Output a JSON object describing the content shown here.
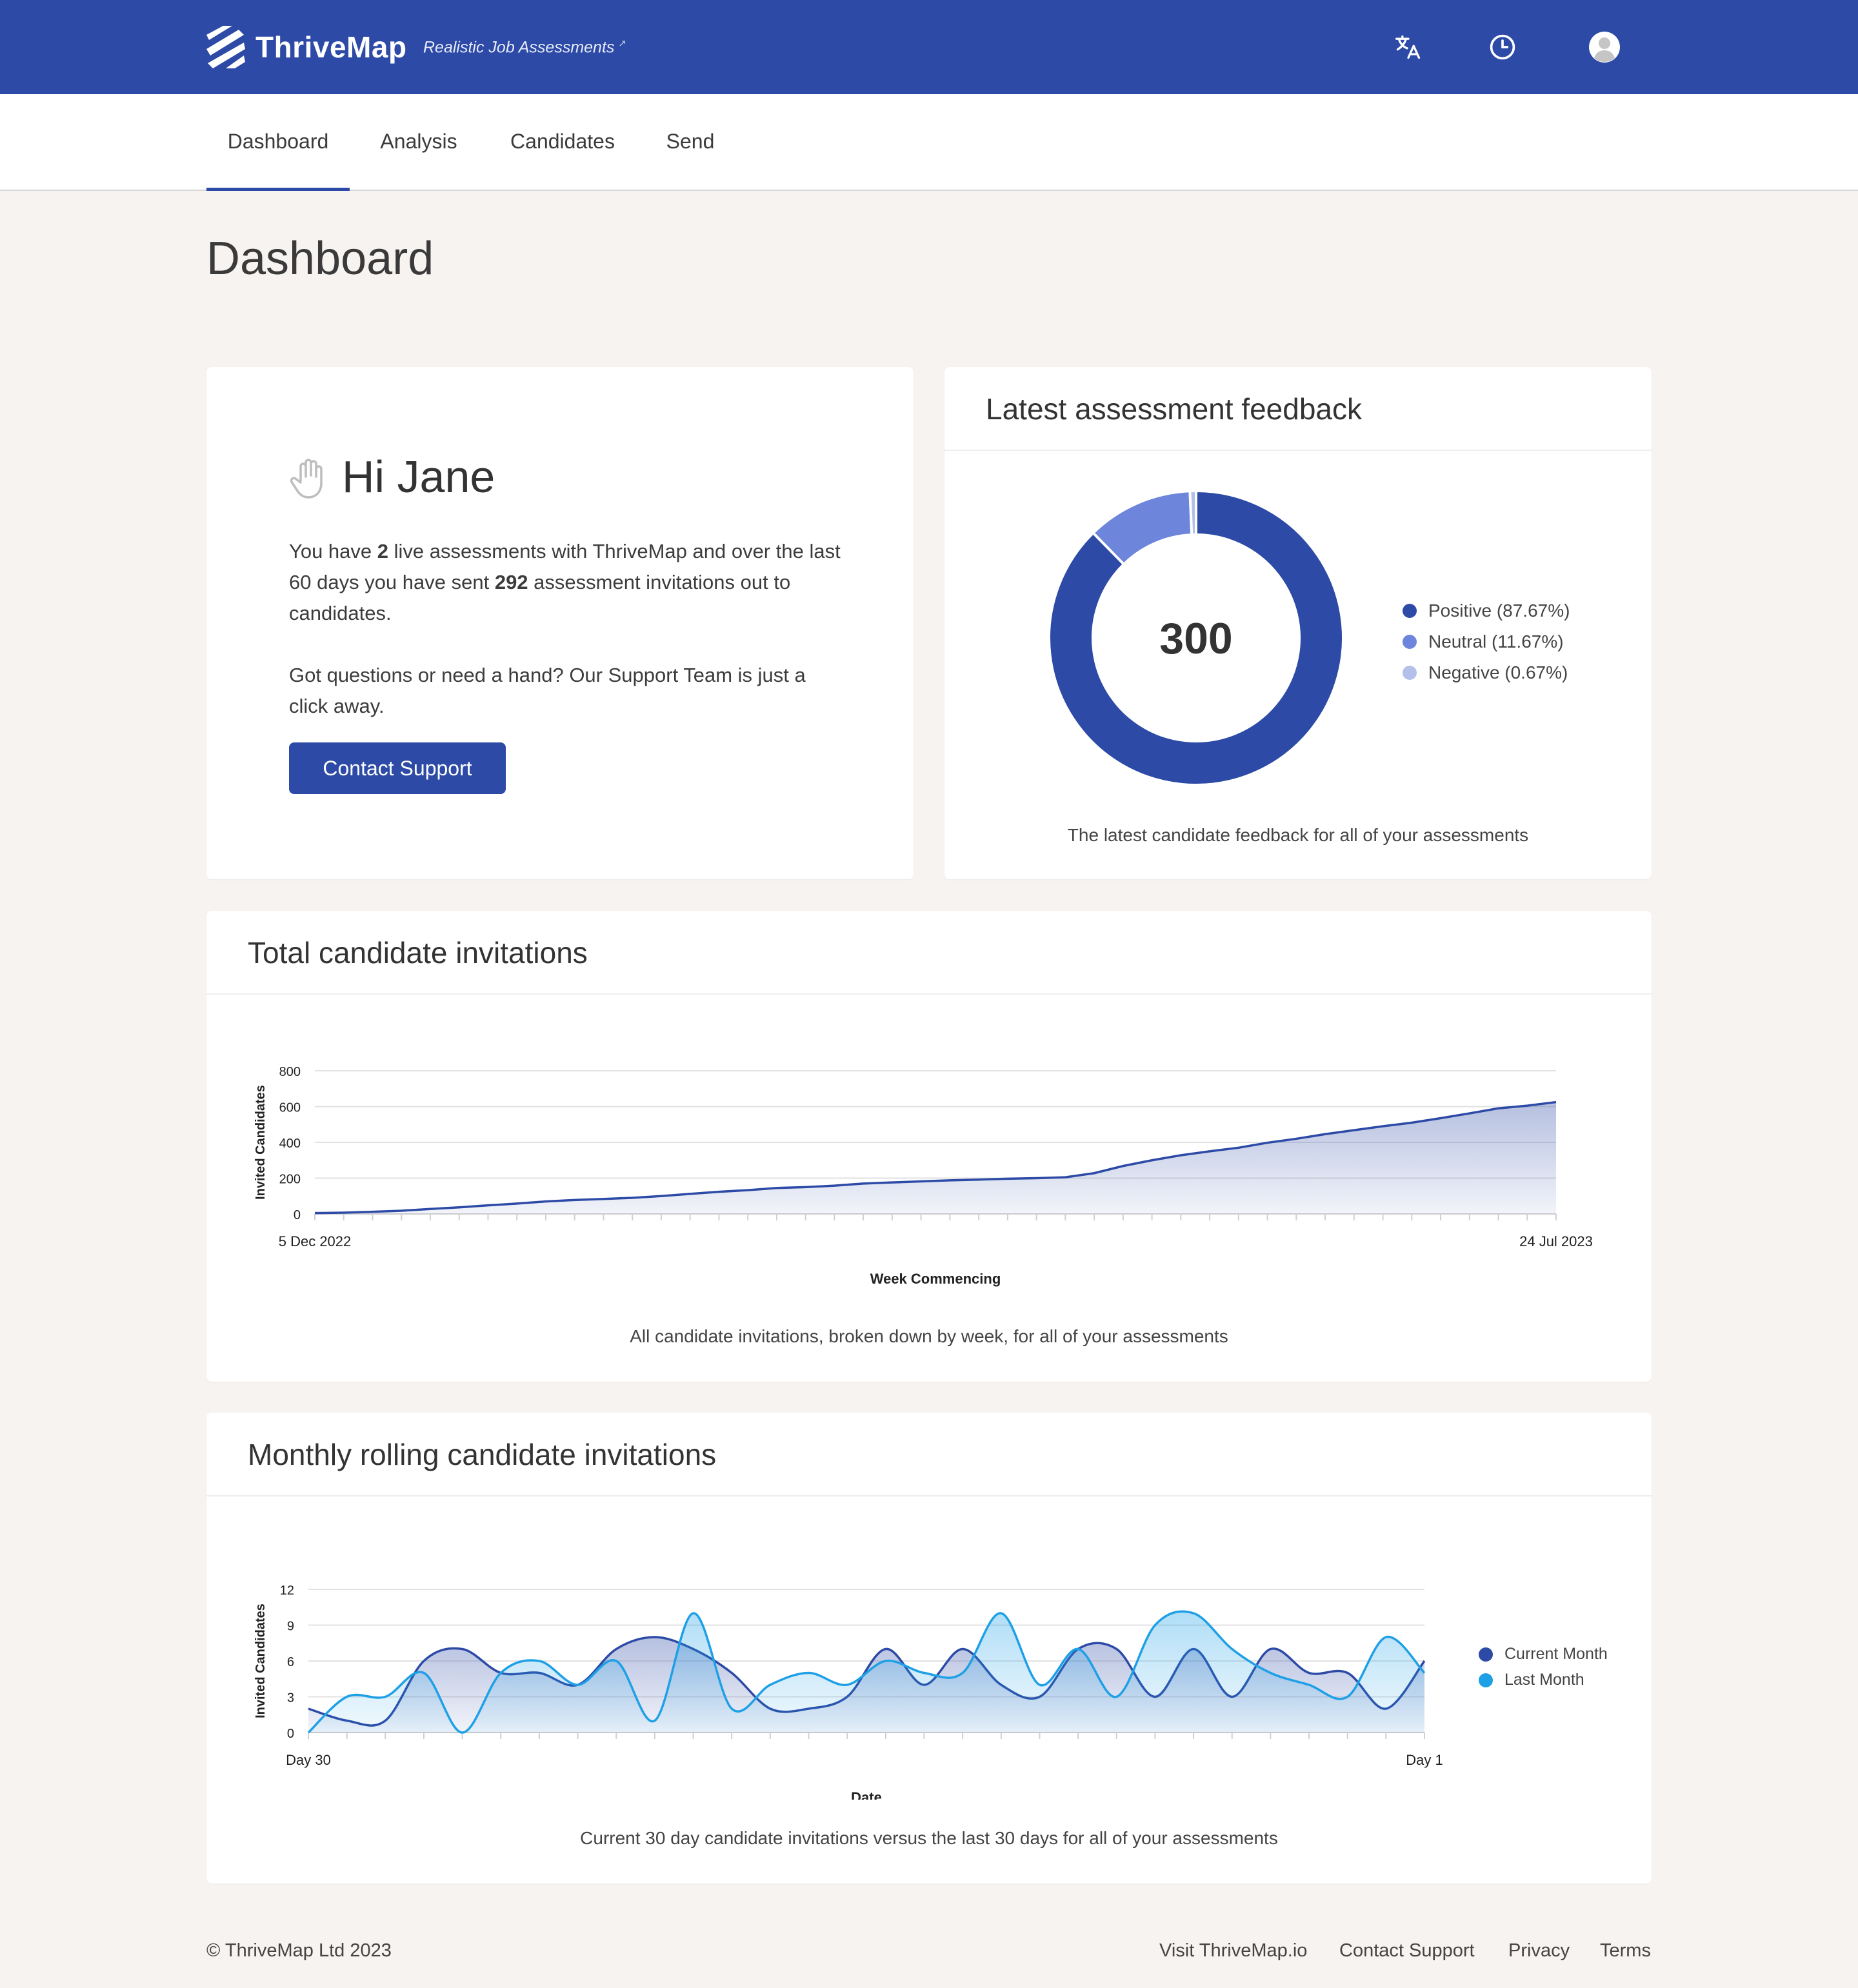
{
  "app": {
    "name": "ThriveMap",
    "tagline": "Realistic Job Assessments",
    "tagline_link_icon": "external-link-icon",
    "header_icons": [
      "translate-icon",
      "history-icon",
      "user-avatar-icon"
    ]
  },
  "nav": {
    "items": [
      {
        "label": "Dashboard",
        "active": true
      },
      {
        "label": "Analysis"
      },
      {
        "label": "Candidates"
      },
      {
        "label": "Send"
      }
    ]
  },
  "page": {
    "title": "Dashboard"
  },
  "welcome": {
    "icon": "waving-hand-icon",
    "greeting": "Hi Jane",
    "para1": {
      "t1": "You have ",
      "n1": "2",
      "t2": " live assessments with ThriveMap and over the last 60 days you have sent ",
      "n2": "292",
      "t3": " assessment invitations out to candidates."
    },
    "para2": "Got questions or need a hand? Our Support Team is just a click away.",
    "button_label": "Contact Support"
  },
  "feedback": {
    "title": "Latest assessment feedback",
    "caption": "The latest candidate feedback for all of your assessments",
    "chart_data": {
      "type": "pie",
      "variant": "doughnut",
      "center_label": "300",
      "labels": [
        "Positive (87.67%)",
        "Neutral (11.67%)",
        "Negative (0.67%)"
      ],
      "values": [
        87.67,
        11.67,
        0.67
      ],
      "colors": [
        "#2c4aa6",
        "#6d85db",
        "#b3c0ea"
      ],
      "legend": "right"
    }
  },
  "total": {
    "title": "Total candidate invitations",
    "caption": "All candidate invitations, broken down by week, for all of your assessments",
    "chart_data": {
      "type": "area",
      "xlabel": "Week Commencing",
      "ylabel": "Invited Candidates",
      "x_tick_labels": [
        "5 Dec 2022",
        "24 Jul 2023"
      ],
      "y_ticks": [
        0,
        200,
        400,
        600,
        800
      ],
      "ylim": [
        0,
        800
      ],
      "grid": true,
      "color": "#2c4aa6",
      "values": [
        5,
        7,
        12,
        18,
        28,
        37,
        48,
        58,
        70,
        78,
        84,
        90,
        100,
        112,
        124,
        133,
        145,
        150,
        158,
        170,
        176,
        182,
        188,
        192,
        197,
        200,
        205,
        228,
        268,
        300,
        328,
        350,
        370,
        398,
        420,
        446,
        468,
        490,
        510,
        535,
        562,
        590,
        605,
        625
      ]
    }
  },
  "monthly": {
    "title": "Monthly rolling candidate invitations",
    "caption": "Current 30 day candidate invitations versus the last 30 days for all of your assessments",
    "chart_data": {
      "type": "area",
      "xlabel": "Date",
      "ylabel": "Invited Candidates",
      "x_tick_labels": [
        "Day 30",
        "Day 1"
      ],
      "y_ticks": [
        0,
        3,
        6,
        9,
        12
      ],
      "ylim": [
        0,
        12
      ],
      "grid": true,
      "legend": "right",
      "series": [
        {
          "name": "Current Month",
          "color": "#2c4aa6",
          "values": [
            2,
            1,
            1,
            6,
            7,
            5,
            5,
            4,
            7,
            8,
            7,
            5,
            2,
            2,
            3,
            7,
            4,
            7,
            4,
            3,
            7,
            7,
            3,
            7,
            3,
            7,
            5,
            5,
            2,
            6
          ]
        },
        {
          "name": "Last Month",
          "color": "#1ea0e6",
          "values": [
            0,
            3,
            3,
            5,
            0,
            5,
            6,
            4,
            6,
            1,
            10,
            2,
            4,
            5,
            4,
            6,
            5,
            5,
            10,
            4,
            7,
            3,
            9,
            10,
            7,
            5,
            4,
            3,
            8,
            5
          ]
        }
      ]
    }
  },
  "footer": {
    "copyright": "© ThriveMap Ltd 2023",
    "links": [
      "Visit ThriveMap.io",
      "Contact Support",
      "Privacy",
      "Terms"
    ]
  }
}
